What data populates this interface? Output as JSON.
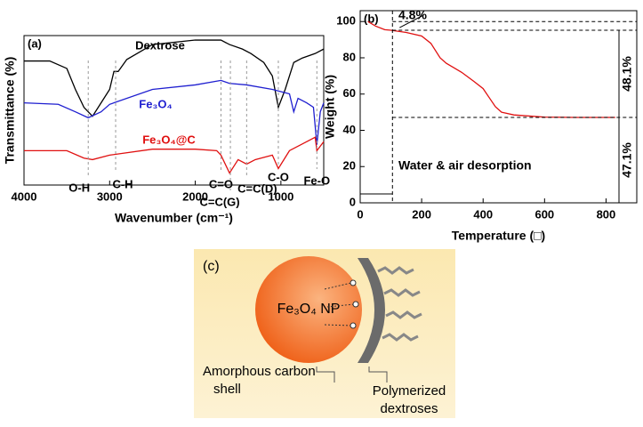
{
  "chart_data": [
    {
      "type": "line",
      "panel_label": "(a)",
      "x_label": "Wavenumber (cm⁻¹)",
      "y_label": "Transmittance (%)",
      "xlim": [
        4000,
        500
      ],
      "xticks": [
        4000,
        3000,
        2000,
        1000
      ],
      "ylim": [
        0,
        100
      ],
      "series": [
        {
          "name": "Dextrose",
          "color": "#000000",
          "x": [
            4000,
            3700,
            3500,
            3400,
            3300,
            3200,
            3100,
            3000,
            2950,
            2900,
            2800,
            2500,
            2000,
            1700,
            1600,
            1450,
            1350,
            1200,
            1100,
            1030,
            950,
            850,
            750,
            600,
            500
          ],
          "values": [
            83,
            83,
            78,
            64,
            52,
            46,
            55,
            64,
            76,
            76,
            84,
            94,
            97,
            97,
            94,
            91,
            88,
            82,
            73,
            52,
            64,
            82,
            85,
            88,
            91
          ]
        },
        {
          "name": "Fe₃O₄",
          "color": "#1f1fd0",
          "x": [
            4000,
            3600,
            3400,
            3250,
            3100,
            3000,
            2500,
            2000,
            1700,
            1600,
            1400,
            1100,
            900,
            850,
            800,
            700,
            620,
            580,
            540,
            500
          ],
          "values": [
            55,
            54,
            49,
            45,
            49,
            54,
            64,
            67,
            70,
            68,
            67,
            64,
            61,
            49,
            58,
            55,
            52,
            27,
            49,
            55
          ]
        },
        {
          "name": "Fe₃O₄@C",
          "color": "#e01010",
          "x": [
            4000,
            3500,
            3300,
            3200,
            3000,
            2500,
            2000,
            1750,
            1700,
            1600,
            1500,
            1400,
            1300,
            1100,
            1030,
            900,
            700,
            600,
            580,
            500
          ],
          "values": [
            23,
            23,
            18,
            17,
            20,
            24,
            24,
            23,
            20,
            8,
            17,
            14,
            17,
            20,
            11,
            23,
            29,
            32,
            23,
            29
          ]
        }
      ],
      "annotations": [
        {
          "text": "O-H",
          "x": 3250
        },
        {
          "text": "C-H",
          "x": 2930
        },
        {
          "text": "C=O",
          "x": 1700
        },
        {
          "text": "C=C(G)",
          "x": 1590
        },
        {
          "text": "C=C(D)",
          "x": 1400
        },
        {
          "text": "C-O",
          "x": 1030
        },
        {
          "text": "Fe-O",
          "x": 580
        }
      ]
    },
    {
      "type": "line",
      "panel_label": "(b)",
      "x_label": "Temperature (□)",
      "y_label": "Weight (%)",
      "xlim": [
        0,
        900
      ],
      "xticks": [
        0,
        200,
        400,
        600,
        800
      ],
      "ylim": [
        0,
        106
      ],
      "yticks": [
        0,
        20,
        40,
        60,
        80,
        100
      ],
      "series": [
        {
          "color": "#e01010",
          "x": [
            25,
            50,
            80,
            100,
            150,
            200,
            230,
            260,
            280,
            330,
            370,
            400,
            420,
            440,
            460,
            500,
            600,
            700,
            830
          ],
          "values": [
            100,
            97.5,
            95.5,
            95.2,
            94,
            92,
            88,
            80,
            77,
            72,
            67,
            63,
            58,
            53,
            50,
            48.5,
            47.3,
            47.1,
            47.1
          ]
        }
      ],
      "hlines": [
        100,
        95.2,
        47.1
      ],
      "vline": 105,
      "annotations": [
        "4.8%",
        "48.1%",
        "47.1%",
        "Water & air desorption"
      ]
    }
  ],
  "diagram": {
    "label": "(c)",
    "nanoparticle": "Fe₃O₄ NP",
    "shell": [
      "Amorphous carbon",
      "shell"
    ],
    "polymer": [
      "Polymerized",
      "dextroses"
    ]
  }
}
